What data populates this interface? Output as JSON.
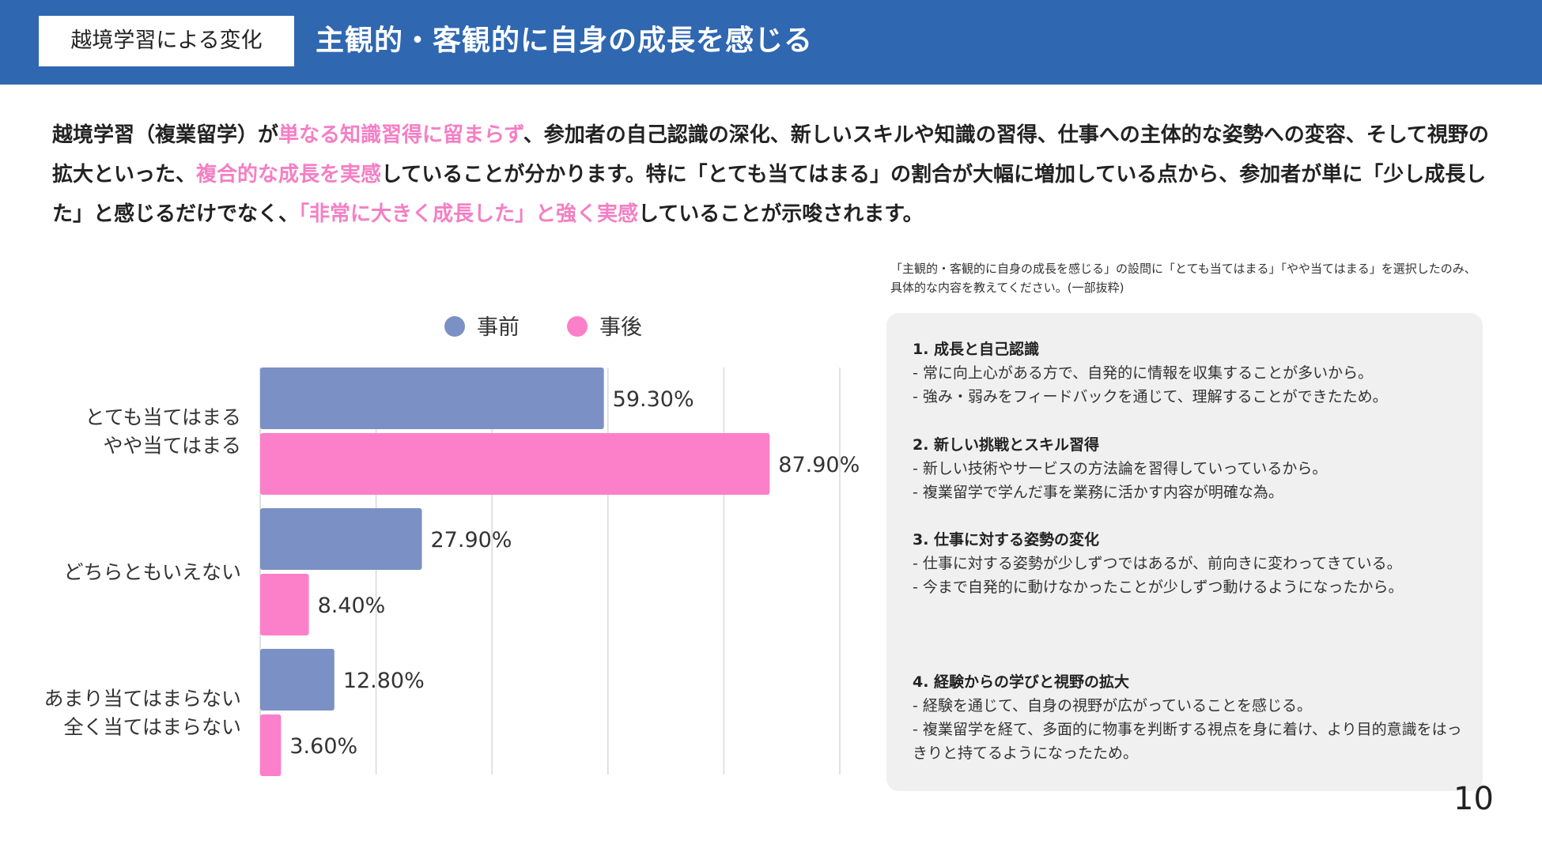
{
  "header": {
    "tag": "越境学習による変化",
    "title": "主観的・客観的に自身の成長を感じる"
  },
  "intro": [
    {
      "text": "越境学習（複業留学）が",
      "hl": false
    },
    {
      "text": "単なる知識習得に留まらず",
      "hl": true
    },
    {
      "text": "、参加者の自己認識の深化、新しいスキルや知識の習得、仕事への主体的な姿勢への変容、そして視野の拡大といった、",
      "hl": false
    },
    {
      "text": "複合的な成長を実感",
      "hl": true
    },
    {
      "text": "していることが分かります。特に「とても当てはまる」の割合が大幅に増加している点から、参加者が単に「少し成長した」と感じるだけでなく、",
      "hl": false
    },
    {
      "text": "「非常に大きく成長した」と強く実感",
      "hl": true
    },
    {
      "text": "していることが示唆されます。",
      "hl": false
    }
  ],
  "colors": {
    "header_bg": "#2f67b1",
    "before": "#7b90c4",
    "after": "#fc7fca",
    "highlight": "#f47fc4",
    "grid": "#d9d9d9"
  },
  "chart_data": {
    "type": "bar",
    "orientation": "horizontal",
    "categories": [
      [
        "とても当てはまる",
        "やや当てはまる"
      ],
      [
        "どちらともいえない"
      ],
      [
        "あまり当てはまらない",
        "全く当てはまらない"
      ]
    ],
    "series": [
      {
        "name": "事前",
        "values": [
          59.3,
          27.9,
          12.8
        ],
        "labels": [
          "59.30%",
          "27.90%",
          "12.80%"
        ]
      },
      {
        "name": "事後",
        "values": [
          87.9,
          8.4,
          3.6
        ],
        "labels": [
          "87.90%",
          "8.40%",
          "3.60%"
        ]
      }
    ],
    "xlim": [
      0,
      100
    ],
    "grid": true,
    "legend": "top"
  },
  "survey_note": "「主観的・客観的に自身の成長を感じる」の設問に「とても当てはまる」「やや当てはまる」を選択したのみ、具体的な内容を教えてください。(一部抜粋)",
  "sections": [
    {
      "heading": "1. 成長と自己認識",
      "lines": [
        "- 常に向上心がある方で、自発的に情報を収集することが多いから。",
        "- 強み・弱みをフィードバックを通じて、理解することができたため。"
      ]
    },
    {
      "heading": "2. 新しい挑戦とスキル習得",
      "lines": [
        "- 新しい技術やサービスの方法論を習得していっているから。",
        "- 複業留学で学んだ事を業務に活かす内容が明確な為。"
      ]
    },
    {
      "heading": "3. 仕事に対する姿勢の変化",
      "lines": [
        "- 仕事に対する姿勢が少しずつではあるが、前向きに変わってきている。",
        "- 今まで自発的に動けなかったことが少しずつ動けるようになったから。"
      ]
    },
    {
      "heading": "4. 経験からの学びと視野の拡大",
      "lines": [
        "- 経験を通じて、自身の視野が広がっていることを感じる。",
        "- 複業留学を経て、多面的に物事を判断する視点を身に着け、より目的意識をはっきりと持てるようになったため。"
      ]
    }
  ],
  "page_number": "10"
}
